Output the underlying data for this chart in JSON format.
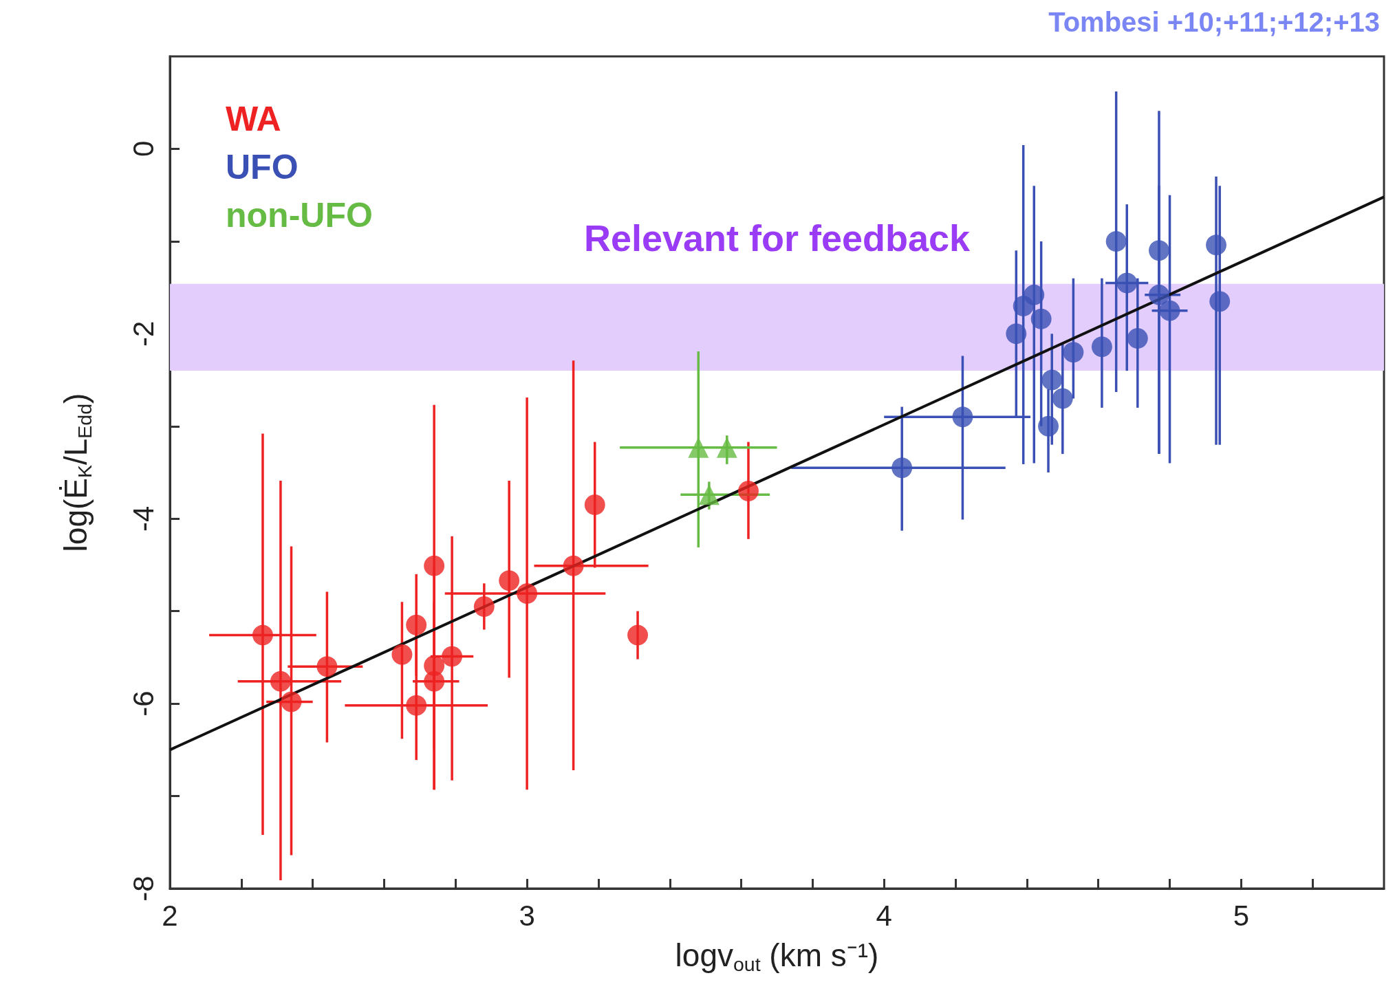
{
  "chart_data": {
    "type": "scatter",
    "xlabel": "logv$_{out}$ (km s⁻¹)",
    "ylabel": "log(Ė$_{K}$/L$_{Edd}$)",
    "xlim": [
      2,
      5.4
    ],
    "ylim": [
      -8,
      1
    ],
    "xticks": [
      2,
      {
        "value": 2.2,
        "label": null
      },
      {
        "value": 2.4,
        "label": null
      },
      {
        "value": 2.6,
        "label": null
      },
      {
        "value": 2.8,
        "label": null
      },
      3,
      {
        "value": 3.2,
        "label": null
      },
      {
        "value": 3.4,
        "label": null
      },
      {
        "value": 3.6,
        "label": null
      },
      {
        "value": 3.8,
        "label": null
      },
      4,
      {
        "value": 4.2,
        "label": null
      },
      {
        "value": 4.4,
        "label": null
      },
      {
        "value": 4.6,
        "label": null
      },
      {
        "value": 4.8,
        "label": null
      },
      5,
      {
        "value": 5.2,
        "label": null
      }
    ],
    "yticks": [
      -8,
      {
        "value": -7,
        "label": null
      },
      -6,
      {
        "value": -5,
        "label": null
      },
      -4,
      {
        "value": -3,
        "label": null
      },
      -2,
      {
        "value": -1,
        "label": null
      },
      0
    ],
    "grid": false,
    "legend": "top left",
    "bands": [
      {
        "axis": "y",
        "from": -2.4,
        "to": -1.46,
        "label": "Relevant for feedback",
        "color": "#e3cdfd"
      }
    ],
    "annotations": [
      "Tombesi +10;+11;+12;+13"
    ],
    "series": [
      {
        "name": "WA",
        "color": "#ee2222",
        "marker": "circle",
        "x": [
          2.26,
          2.31,
          2.34,
          2.44,
          2.65,
          2.69,
          2.69,
          2.74,
          2.74,
          2.74,
          2.79,
          2.88,
          2.95,
          3.0,
          3.13,
          3.19,
          3.31,
          3.62
        ],
        "values": [
          -5.26,
          -5.76,
          -5.98,
          -5.6,
          -5.47,
          -5.15,
          -6.02,
          -4.51,
          -5.76,
          -5.59,
          -5.49,
          -4.95,
          -4.67,
          -4.81,
          -4.51,
          -3.85,
          -5.26,
          -3.7
        ],
        "errors": [
          [
            -7.42,
            -3.08
          ],
          [
            -7.91,
            -3.59
          ],
          [
            -7.64,
            -4.3
          ],
          [
            -6.42,
            -4.79
          ],
          [
            -6.38,
            -4.9
          ],
          [
            -5.7,
            -4.6
          ],
          [
            -6.61,
            -5.25
          ],
          [
            -6.93,
            -2.77
          ],
          [
            -6.93,
            -4.5
          ],
          [
            -6.5,
            -4.9
          ],
          [
            -6.83,
            -4.19
          ],
          [
            -5.2,
            -4.7
          ],
          [
            -5.72,
            -3.59
          ],
          [
            -6.93,
            -2.69
          ],
          [
            -6.72,
            -2.29
          ],
          [
            -4.53,
            -3.17
          ],
          [
            -5.52,
            -5.0
          ],
          [
            -4.22,
            -3.17
          ]
        ],
        "xerrors": [
          [
            2.11,
            2.41
          ],
          [
            2.19,
            2.48
          ],
          [
            2.27,
            2.4
          ],
          [
            2.33,
            2.54
          ],
          null,
          null,
          [
            2.49,
            2.89
          ],
          null,
          [
            2.68,
            2.81
          ],
          null,
          [
            2.73,
            2.85
          ],
          null,
          null,
          [
            2.77,
            3.22
          ],
          [
            3.02,
            3.34
          ],
          null,
          null,
          null
        ]
      },
      {
        "name": "UFO",
        "color": "#3a50b4",
        "marker": "circle",
        "x": [
          4.05,
          4.22,
          4.37,
          4.39,
          4.42,
          4.44,
          4.46,
          4.47,
          4.5,
          4.53,
          4.61,
          4.65,
          4.68,
          4.71,
          4.77,
          4.77,
          4.8,
          4.93,
          4.94
        ],
        "values": [
          -3.45,
          -2.9,
          -2.0,
          -1.7,
          -1.58,
          -1.84,
          -3.0,
          -2.5,
          -2.7,
          -2.2,
          -2.14,
          -1.0,
          -1.45,
          -2.05,
          -1.1,
          -1.58,
          -1.75,
          -1.04,
          -1.65
        ],
        "errors": [
          [
            -4.13,
            -2.79
          ],
          [
            -4.01,
            -2.24
          ],
          [
            -2.9,
            -1.1
          ],
          [
            -3.41,
            0.04
          ],
          [
            -3.4,
            -0.4
          ],
          [
            -3.0,
            -1.0
          ],
          [
            -3.5,
            -2.6
          ],
          [
            -3.2,
            -2.0
          ],
          [
            -3.3,
            -2.1
          ],
          [
            -2.7,
            -1.4
          ],
          [
            -2.8,
            -1.4
          ],
          [
            -2.63,
            0.62
          ],
          [
            -2.4,
            -0.6
          ],
          [
            -2.8,
            -1.4
          ],
          [
            -3.3,
            0.41
          ],
          [
            -3.3,
            -0.4
          ],
          [
            -3.4,
            -0.5
          ],
          [
            -3.2,
            -0.3
          ],
          [
            -3.2,
            -0.4
          ]
        ],
        "xerrors": [
          [
            3.74,
            4.34
          ],
          [
            4.0,
            4.41
          ],
          null,
          null,
          null,
          null,
          null,
          null,
          null,
          null,
          null,
          null,
          [
            4.62,
            4.74
          ],
          null,
          null,
          [
            4.73,
            4.83
          ],
          [
            4.75,
            4.85
          ],
          null,
          null
        ]
      },
      {
        "name": "non-UFO",
        "color": "#66bb44",
        "marker": "triangle",
        "x": [
          3.48,
          3.56,
          3.51
        ],
        "values": [
          -3.23,
          -3.23,
          -3.74
        ],
        "errors": [
          [
            -4.31,
            -2.19
          ],
          [
            -3.41,
            -3.1
          ],
          [
            -3.9,
            -3.6
          ]
        ],
        "xerrors": [
          [
            3.26,
            3.7
          ],
          null,
          [
            3.43,
            3.68
          ]
        ]
      },
      {
        "type": "line",
        "color": "#111111",
        "marker": "none",
        "line_style": "solid",
        "x": [
          2,
          5.4
        ],
        "values": [
          -6.5,
          -0.52
        ]
      }
    ]
  }
}
